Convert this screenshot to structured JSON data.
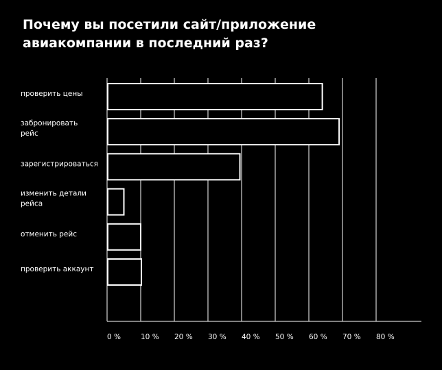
{
  "chart_data": {
    "type": "bar",
    "orientation": "horizontal",
    "title": "Почему вы посетили сайт/приложение авиакомпании в последний раз?",
    "categories": [
      [
        "проверить цены"
      ],
      [
        "забронировать",
        "рейс"
      ],
      [
        "зарегистрироваться"
      ],
      [
        "изменить детали",
        "рейса"
      ],
      [
        "отменить рейс"
      ],
      [
        "проверить аккаунт"
      ]
    ],
    "values": [
      64,
      69,
      39.5,
      5,
      10,
      10.2
    ],
    "unit": "%",
    "xlim": [
      0,
      80
    ],
    "xticks": [
      0,
      10,
      20,
      30,
      40,
      50,
      60,
      70,
      80
    ],
    "xtick_labels": [
      "0 %",
      "10 %",
      "20 %",
      "30 %",
      "40 %",
      "50 %",
      "60 %",
      "70 %",
      "80 %"
    ],
    "grid": "vertical",
    "colors": {
      "background": "#000000",
      "bar_fill": "#000000",
      "bar_stroke": "#ffffff",
      "grid": "#ffffff",
      "text": "#ffffff"
    }
  }
}
